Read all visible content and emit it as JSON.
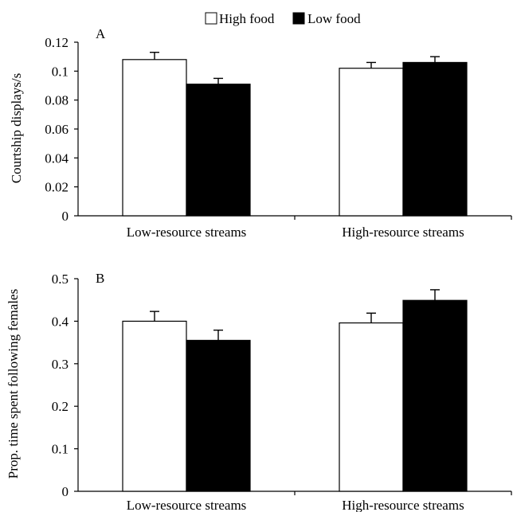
{
  "legend": [
    {
      "name": "High food",
      "color": "#ffffff"
    },
    {
      "name": "Low food",
      "color": "#000000"
    }
  ],
  "chart_data": [
    {
      "type": "bar",
      "panel_label": "A",
      "ylabel": "Courtship displays/s",
      "categories": [
        "Low-resource streams",
        "High-resource streams"
      ],
      "ylim": [
        0,
        0.12
      ],
      "yticks": [
        "0",
        "0.02",
        "0.04",
        "0.06",
        "0.08",
        "0.1",
        "0.12"
      ],
      "series": [
        {
          "name": "High food",
          "values": [
            0.108,
            0.102
          ],
          "errors": [
            0.005,
            0.004
          ],
          "color": "#ffffff"
        },
        {
          "name": "Low food",
          "values": [
            0.091,
            0.106
          ],
          "errors": [
            0.004,
            0.004
          ],
          "color": "#000000"
        }
      ]
    },
    {
      "type": "bar",
      "panel_label": "B",
      "ylabel": "Prop. time spent following females",
      "categories": [
        "Low-resource streams",
        "High-resource streams"
      ],
      "ylim": [
        0,
        0.5
      ],
      "yticks": [
        "0",
        "0.1",
        "0.2",
        "0.3",
        "0.4",
        "0.5"
      ],
      "series": [
        {
          "name": "High food",
          "values": [
            0.4,
            0.396
          ],
          "errors": [
            0.023,
            0.023
          ],
          "color": "#ffffff"
        },
        {
          "name": "Low food",
          "values": [
            0.355,
            0.449
          ],
          "errors": [
            0.024,
            0.025
          ],
          "color": "#000000"
        }
      ]
    }
  ]
}
